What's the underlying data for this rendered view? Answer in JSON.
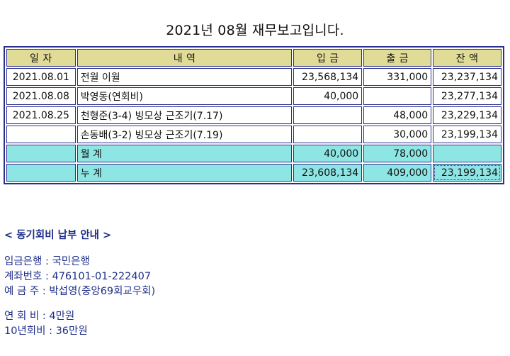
{
  "title": "2021년 08월 재무보고입니다.",
  "table": {
    "headers": {
      "date": "일 자",
      "desc": "내   역",
      "income": "입  금",
      "expense": "출  금",
      "balance": "잔  액"
    },
    "rows": [
      {
        "date": "2021.08.01",
        "desc": "전월 이월",
        "income": "23,568,134",
        "expense": "331,000",
        "balance": "23,237,134"
      },
      {
        "date": "2021.08.08",
        "desc": "박영동(연회비)",
        "income": "40,000",
        "expense": "",
        "balance": "23,277,134"
      },
      {
        "date": "2021.08.25",
        "desc": "천형준(3-4) 빙모상 근조기(7.17)",
        "income": "",
        "expense": "48,000",
        "balance": "23,229,134"
      },
      {
        "date": "",
        "desc": "손동배(3-2) 빙모상 근조기(7.19)",
        "income": "",
        "expense": "30,000",
        "balance": "23,199,134"
      }
    ],
    "monthly": {
      "label": "월   계",
      "income": "40,000",
      "expense": "78,000",
      "balance": ""
    },
    "cumulative": {
      "label": "누   계",
      "income": "23,608,134",
      "expense": "409,000",
      "balance": "23,199,134"
    }
  },
  "notice": {
    "heading": "< 동기회비 납부 안내 >",
    "bank": "입금은행 : 국민은행",
    "account": "계좌번호 : 476101-01-222407",
    "holder": "예 금 주 : 박섭영(중앙69회교우회)",
    "annual_fee": "연 회 비 : 4만원",
    "ten_year_fee": "10년회비 : 36만원"
  },
  "colors": {
    "border": "#2b2f8f",
    "header_bg": "#e0dc98",
    "summary_bg": "#8ee6e4",
    "notice_text": "#1f2f8a"
  }
}
